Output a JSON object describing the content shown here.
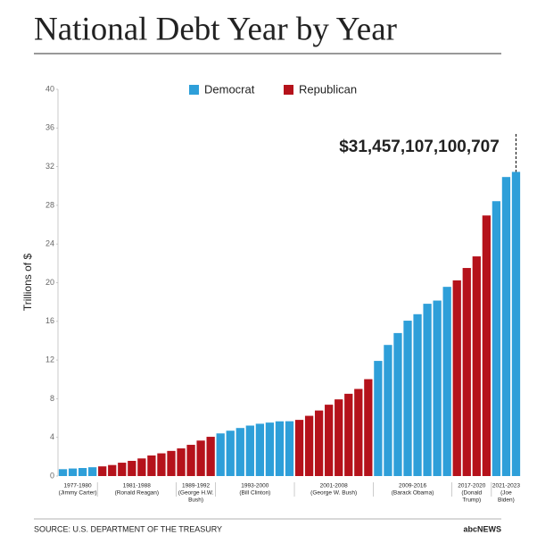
{
  "chart_data": {
    "type": "bar",
    "title": "National Debt Year by Year",
    "y_label": "Trillions of $",
    "annotation": "$31,457,107,100,707",
    "source": "SOURCE: U.S. DEPARTMENT OF THE TREASURY",
    "logo": "abcNEWS",
    "ylim": [
      0,
      40
    ],
    "yticks": [
      0,
      4,
      8,
      12,
      16,
      20,
      24,
      28,
      32,
      36,
      40
    ],
    "series": [
      {
        "name": "Democrat",
        "color": "#2e9fd9"
      },
      {
        "name": "Republican",
        "color": "#b5121b"
      }
    ],
    "groups": [
      {
        "label": "1977-1980",
        "name": [
          "(Jimmy Carter)"
        ],
        "series": 0,
        "values": [
          0.71,
          0.78,
          0.83,
          0.91
        ]
      },
      {
        "label": "1981-1988",
        "name": [
          "(Ronald Reagan)"
        ],
        "series": 1,
        "values": [
          1.0,
          1.14,
          1.38,
          1.57,
          1.82,
          2.13,
          2.35,
          2.6
        ]
      },
      {
        "label": "1989-1992",
        "name": [
          "(George H.W.",
          "Bush)"
        ],
        "series": 1,
        "values": [
          2.86,
          3.23,
          3.67,
          4.06
        ]
      },
      {
        "label": "1993-2000",
        "name": [
          "(Bill Clinton)"
        ],
        "series": 0,
        "values": [
          4.41,
          4.69,
          4.97,
          5.22,
          5.41,
          5.53,
          5.66,
          5.67
        ]
      },
      {
        "label": "2001-2008",
        "name": [
          "(George W. Bush)"
        ],
        "series": 1,
        "values": [
          5.81,
          6.23,
          6.78,
          7.38,
          7.93,
          8.51,
          9.01,
          10.02
        ]
      },
      {
        "label": "2009-2016",
        "name": [
          "(Barack Obama)"
        ],
        "series": 0,
        "values": [
          11.91,
          13.56,
          14.79,
          16.07,
          16.74,
          17.82,
          18.15,
          19.57
        ]
      },
      {
        "label": "2017-2020",
        "name": [
          "(Donald",
          "Trump)"
        ],
        "series": 1,
        "values": [
          20.24,
          21.52,
          22.72,
          26.95
        ]
      },
      {
        "label": "2021-2023",
        "name": [
          "(Joe",
          "Biden)"
        ],
        "series": 0,
        "values": [
          28.43,
          30.93,
          31.46
        ]
      }
    ]
  }
}
